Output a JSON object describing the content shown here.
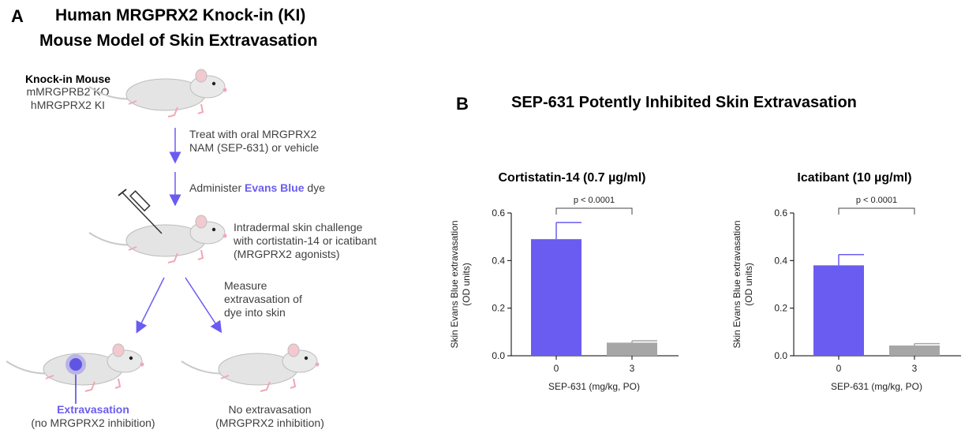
{
  "panel_a": {
    "letter": "A",
    "title_line1": "Human MRGPRX2 Knock-in (KI)",
    "title_line2": "Mouse Model of Skin Extravasation",
    "mouse_label": "Knock-in Mouse",
    "mouse_line2": "mMRGPRB2 KO",
    "mouse_line3": "hMRGPRX2 KI",
    "step1_line1": "Treat with oral MRGPRX2",
    "step1_line2": "NAM (SEP-631) or vehicle",
    "step2_prefix": "Administer ",
    "step2_dye": "Evans Blue",
    "step2_suffix": " dye",
    "step3_line1": "Intradermal skin challenge",
    "step3_line2": "with cortistatin-14 or icatibant",
    "step3_line3": "(MRGPRX2 agonists)",
    "step4_line1": "Measure",
    "step4_line2": "extravasation of",
    "step4_line3": "dye into skin",
    "outcome_left_title": "Extravasation",
    "outcome_left_sub": "(no MRGPRX2 inhibition)",
    "outcome_right_title": "No extravasation",
    "outcome_right_sub": "(MRGPRX2 inhibition)"
  },
  "panel_b": {
    "letter": "B",
    "title": "SEP-631 Potently Inhibited Skin Extravasation"
  },
  "colors": {
    "accent": "#6a5cf0",
    "bar_vehicle": "#6a5cf0",
    "bar_drug": "#a6a6a6",
    "arrow": "#6a5cf0"
  },
  "chart_data": [
    {
      "type": "bar",
      "title": "Cortistatin-14 (0.7 µg/ml)",
      "categories": [
        "0",
        "3"
      ],
      "values": [
        0.49,
        0.055
      ],
      "errors": [
        0.07,
        0.008
      ],
      "xlabel": "SEP-631 (mg/kg, PO)",
      "ylabel_line1": "Skin Evans Blue extravasation",
      "ylabel_line2": "(OD units)",
      "ylim": [
        0,
        0.6
      ],
      "yticks": [
        "0.0",
        "0.2",
        "0.4",
        "0.6"
      ],
      "annotation": "p < 0.0001"
    },
    {
      "type": "bar",
      "title": "Icatibant (10 µg/ml)",
      "categories": [
        "0",
        "3"
      ],
      "values": [
        0.38,
        0.043
      ],
      "errors": [
        0.045,
        0.008
      ],
      "xlabel": "SEP-631 (mg/kg, PO)",
      "ylabel_line1": "Skin Evans Blue extravasation",
      "ylabel_line2": "(OD units)",
      "ylim": [
        0,
        0.6
      ],
      "yticks": [
        "0.0",
        "0.2",
        "0.4",
        "0.6"
      ],
      "annotation": "p < 0.0001"
    }
  ]
}
